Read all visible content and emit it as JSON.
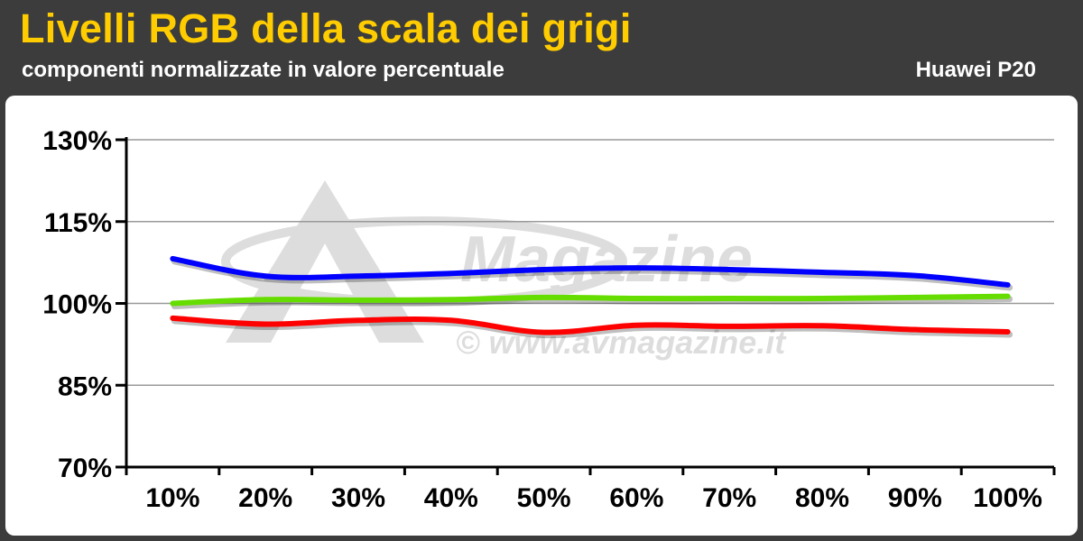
{
  "header": {
    "title": "Livelli RGB della scala dei grigi",
    "subtitle": "componenti normalizzate in valore percentuale",
    "device": "Huawei P20"
  },
  "watermark": {
    "brand": "Magazine",
    "url": "© www.avmagazine.it"
  },
  "colors": {
    "background": "#3c3c3c",
    "title": "#ffcc00",
    "panel": "#ffffff",
    "grid": "#999999",
    "red": "#ff0000",
    "green": "#66dd00",
    "blue": "#0000ff"
  },
  "chart_data": {
    "type": "line",
    "title": "Livelli RGB della scala dei grigi",
    "subtitle": "componenti normalizzate in valore percentuale",
    "categories": [
      "10%",
      "20%",
      "30%",
      "40%",
      "50%",
      "60%",
      "70%",
      "80%",
      "90%",
      "100%"
    ],
    "y_ticks": [
      "70%",
      "85%",
      "100%",
      "115%",
      "130%"
    ],
    "ylim": [
      70,
      130
    ],
    "grid": true,
    "legend": "none",
    "series": [
      {
        "color": "#0000ff",
        "values": [
          108.2,
          105.0,
          105.0,
          105.5,
          106.2,
          106.5,
          106.2,
          105.7,
          105.1,
          103.4
        ]
      },
      {
        "color": "#66dd00",
        "values": [
          100.0,
          100.7,
          100.6,
          100.7,
          101.1,
          100.9,
          100.9,
          100.9,
          101.1,
          101.3
        ]
      },
      {
        "color": "#ff0000",
        "values": [
          97.3,
          96.2,
          96.9,
          96.9,
          94.7,
          96.0,
          95.8,
          95.9,
          95.2,
          94.8
        ]
      }
    ]
  }
}
